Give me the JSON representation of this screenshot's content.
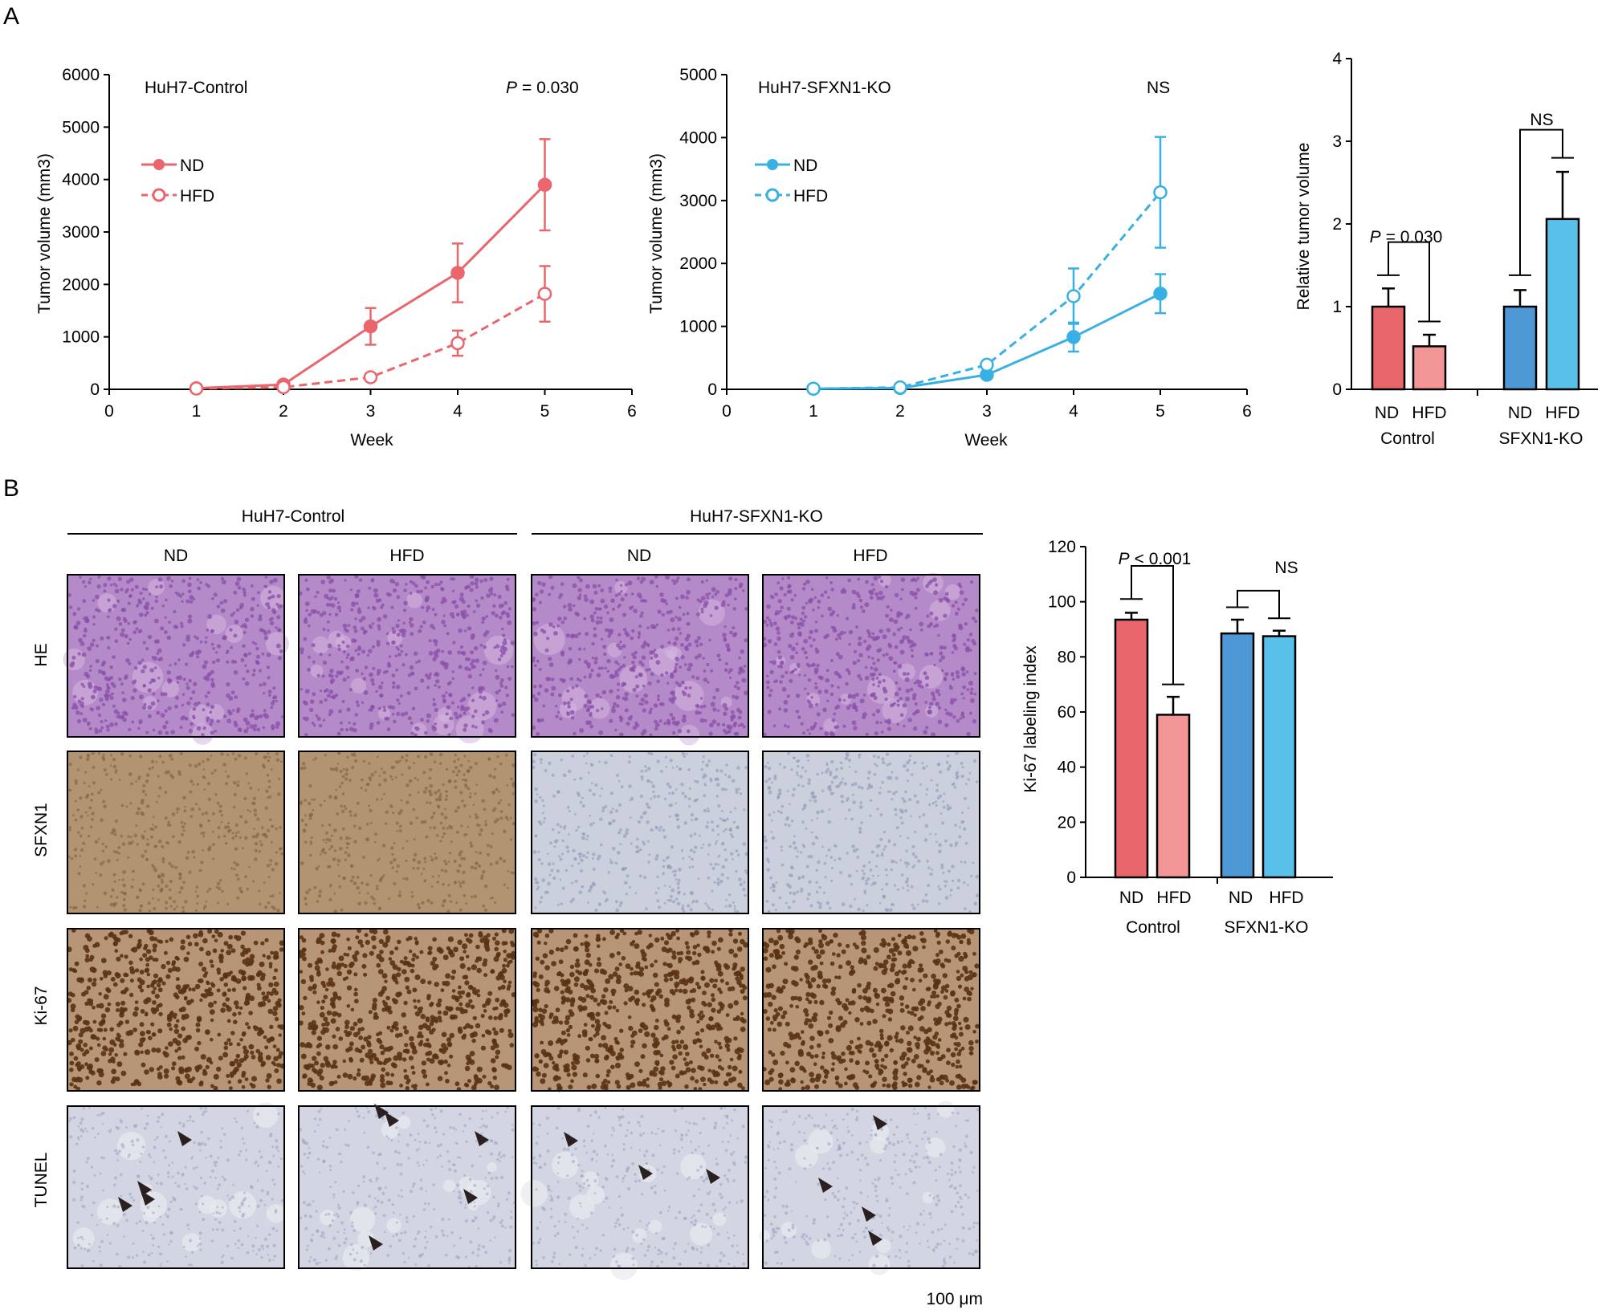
{
  "colors": {
    "control": "#e8666c",
    "control_light": "#f29596",
    "ko": "#39b0e4",
    "ko_dark": "#4e98d5",
    "ko_light": "#58c0e9",
    "axis": "#000000",
    "he_base": "#b48ac8",
    "he_dot": "#8a4ea8",
    "he_light": "#d6b7e0",
    "sfxn1_pos_base": "#b29472",
    "sfxn1_pos_dot": "#7e6040",
    "sfxn1_neg_base": "#cbd0dc",
    "sfxn1_neg_dot": "#8d9ab8",
    "ki67_base": "#b79678",
    "ki67_dot": "#5a3212",
    "tunel_base": "#d3d6e2",
    "tunel_dot": "#9aa2c2",
    "arrowhead": "#2a2020"
  },
  "panels": {
    "A": {
      "label": "A"
    },
    "B": {
      "label": "B"
    }
  },
  "chart_data": [
    {
      "id": "a1",
      "type": "line",
      "title": "HuH7-Control",
      "annotation": {
        "p_prefix": "P",
        "p_value": "= 0.030"
      },
      "xlabel": "Week",
      "ylabel": "Tumor volume (mm3)",
      "xlim": [
        0,
        6
      ],
      "ylim": [
        0,
        6000
      ],
      "xticks": [
        "0",
        "1",
        "2",
        "3",
        "4",
        "5",
        "6"
      ],
      "yticks": [
        "0",
        "1000",
        "2000",
        "3000",
        "4000",
        "5000",
        "6000"
      ],
      "legend": [
        "ND",
        "HFD"
      ],
      "series": [
        {
          "name": "ND",
          "style": "solid-filled",
          "x": [
            1,
            2,
            3,
            4,
            5
          ],
          "y": [
            20,
            90,
            1200,
            2220,
            3900
          ],
          "err": [
            10,
            30,
            350,
            560,
            870
          ]
        },
        {
          "name": "HFD",
          "style": "dashed-open",
          "x": [
            1,
            2,
            3,
            4,
            5
          ],
          "y": [
            15,
            40,
            230,
            880,
            1820
          ],
          "err": [
            8,
            15,
            40,
            240,
            530
          ]
        }
      ]
    },
    {
      "id": "a2",
      "type": "line",
      "title": "HuH7-SFXN1-KO",
      "annotation": {
        "text": "NS"
      },
      "xlabel": "Week",
      "ylabel": "Tumor volume (mm3)",
      "xlim": [
        0,
        6
      ],
      "ylim": [
        0,
        5000
      ],
      "xticks": [
        "0",
        "1",
        "2",
        "3",
        "4",
        "5",
        "6"
      ],
      "yticks": [
        "0",
        "1000",
        "2000",
        "3000",
        "4000",
        "5000"
      ],
      "legend": [
        "ND",
        "HFD"
      ],
      "series": [
        {
          "name": "ND",
          "style": "solid-filled",
          "x": [
            1,
            2,
            3,
            4,
            5
          ],
          "y": [
            10,
            20,
            230,
            830,
            1520
          ],
          "err": [
            5,
            10,
            90,
            230,
            310
          ]
        },
        {
          "name": "HFD",
          "style": "dashed-open",
          "x": [
            1,
            2,
            3,
            4,
            5
          ],
          "y": [
            10,
            30,
            390,
            1480,
            3130
          ],
          "err": [
            5,
            10,
            100,
            440,
            880
          ]
        }
      ]
    },
    {
      "id": "a3",
      "type": "bar",
      "ylabel": "Relative tumor volume",
      "ylim": [
        0,
        4
      ],
      "yticks": [
        "0",
        "1",
        "2",
        "3",
        "4"
      ],
      "categories": [
        "ND",
        "HFD",
        "ND",
        "HFD"
      ],
      "groups": [
        "Control",
        "SFXN1-KO"
      ],
      "values": [
        1.0,
        0.52,
        1.0,
        2.06
      ],
      "err": [
        0.22,
        0.14,
        0.2,
        0.57
      ],
      "comparisons": [
        {
          "label": "P = 0.030",
          "p_prefix": "P",
          "p_value": "= 0.030",
          "left_y": 1.38,
          "right_y": 0.82,
          "top": 1.78
        },
        {
          "label": "NS",
          "left_y": 1.38,
          "right_y": 2.8,
          "top": 3.14
        }
      ]
    },
    {
      "id": "b1",
      "type": "bar",
      "ylabel": "Ki-67 labeling index",
      "ylim": [
        0,
        120
      ],
      "yticks": [
        "0",
        "20",
        "40",
        "60",
        "80",
        "100",
        "120"
      ],
      "categories": [
        "ND",
        "HFD",
        "ND",
        "HFD"
      ],
      "groups": [
        "Control",
        "SFXN1-KO"
      ],
      "values": [
        93.5,
        59.0,
        88.5,
        87.5
      ],
      "err": [
        2.5,
        6.5,
        5.0,
        2.0
      ],
      "comparisons": [
        {
          "label": "P < 0.001",
          "p_prefix": "P",
          "p_value": "< 0.001",
          "left_y": 101,
          "right_y": 70,
          "top": 113
        },
        {
          "label": "NS",
          "left_y": 98,
          "right_y": 94,
          "top": 104
        }
      ]
    }
  ],
  "histology": {
    "group_headers": [
      "HuH7-Control",
      "HuH7-SFXN1-KO"
    ],
    "column_headers": [
      "ND",
      "HFD",
      "ND",
      "HFD"
    ],
    "row_labels": [
      "HE",
      "SFXN1",
      "Ki-67",
      "TUNEL"
    ],
    "scale_bar": "100 μm"
  }
}
